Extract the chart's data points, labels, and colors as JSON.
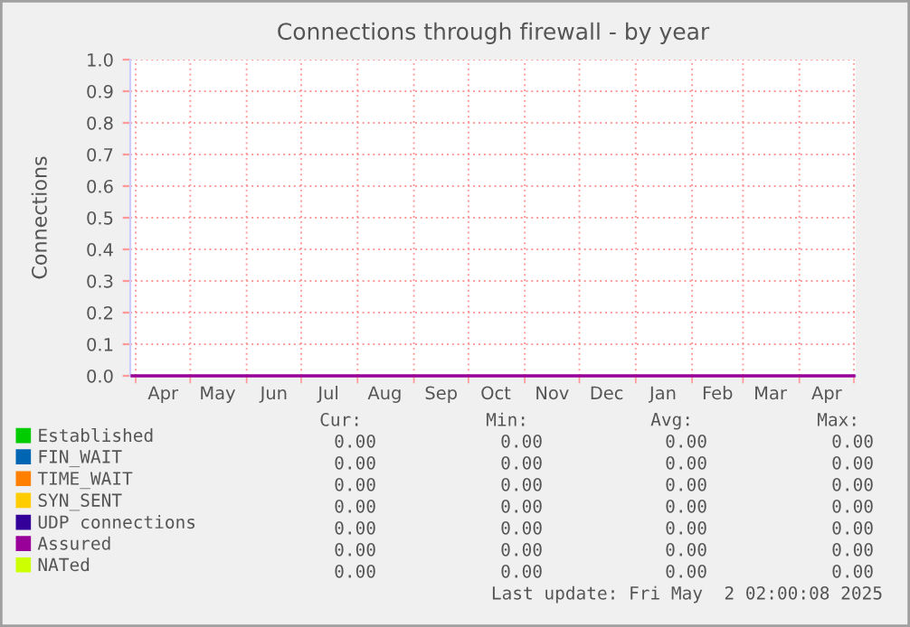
{
  "chart_data": {
    "type": "line",
    "title": "Connections through firewall - by year",
    "ylabel": "Connections",
    "x": [
      "2024-03-30",
      "2025-05-01"
    ],
    "series": [
      {
        "name": "Established",
        "color": "#00cc00",
        "values": [
          null,
          null
        ]
      },
      {
        "name": "FIN_WAIT",
        "color": "#0066b3",
        "values": [
          null,
          null
        ]
      },
      {
        "name": "TIME_WAIT",
        "color": "#ff8000",
        "values": [
          null,
          null
        ]
      },
      {
        "name": "SYN_SENT",
        "color": "#ffcc00",
        "values": [
          null,
          null
        ]
      },
      {
        "name": "UDP connections",
        "color": "#330099",
        "values": [
          null,
          null
        ]
      },
      {
        "name": "Assured",
        "color": "#990099",
        "values": [
          0,
          0
        ]
      },
      {
        "name": "NATed",
        "color": "#ccff00",
        "values": [
          null,
          null
        ]
      }
    ],
    "xlim": [
      "2024-03-29",
      "2025-05-02"
    ],
    "xticks": [
      {
        "value": "2024-04-01",
        "label": null
      },
      {
        "value": "2024-04-16",
        "label": "Apr"
      },
      {
        "value": "2024-05-01",
        "label": null
      },
      {
        "value": "2024-05-16",
        "label": "May"
      },
      {
        "value": "2024-06-01",
        "label": null
      },
      {
        "value": "2024-06-16",
        "label": "Jun"
      },
      {
        "value": "2024-07-01",
        "label": null
      },
      {
        "value": "2024-07-16",
        "label": "Jul"
      },
      {
        "value": "2024-08-01",
        "label": null
      },
      {
        "value": "2024-08-16",
        "label": "Aug"
      },
      {
        "value": "2024-09-01",
        "label": null
      },
      {
        "value": "2024-09-16",
        "label": "Sep"
      },
      {
        "value": "2024-10-01",
        "label": null
      },
      {
        "value": "2024-10-16",
        "label": "Oct"
      },
      {
        "value": "2024-11-01",
        "label": null
      },
      {
        "value": "2024-11-16",
        "label": "Nov"
      },
      {
        "value": "2024-12-01",
        "label": null
      },
      {
        "value": "2024-12-16",
        "label": "Dec"
      },
      {
        "value": "2025-01-01",
        "label": null
      },
      {
        "value": "2025-01-16",
        "label": "Jan"
      },
      {
        "value": "2025-02-01",
        "label": null
      },
      {
        "value": "2025-02-15",
        "label": "Feb"
      },
      {
        "value": "2025-03-01",
        "label": null
      },
      {
        "value": "2025-03-16",
        "label": "Mar"
      },
      {
        "value": "2025-04-01",
        "label": null
      },
      {
        "value": "2025-04-16",
        "label": "Apr"
      },
      {
        "value": "2025-05-01",
        "label": null
      }
    ],
    "ylim": [
      0,
      1
    ],
    "yticks": [
      {
        "value": 0,
        "label": "0.0"
      },
      {
        "value": 0.1,
        "label": "0.1"
      },
      {
        "value": 0.2,
        "label": "0.2"
      },
      {
        "value": 0.3,
        "label": "0.3"
      },
      {
        "value": 0.4,
        "label": "0.4"
      },
      {
        "value": 0.5,
        "label": "0.5"
      },
      {
        "value": 0.6,
        "label": "0.6"
      },
      {
        "value": 0.7,
        "label": "0.7"
      },
      {
        "value": 0.8,
        "label": "0.8"
      },
      {
        "value": 0.9,
        "label": "0.9"
      },
      {
        "value": 1,
        "label": "1.0"
      }
    ],
    "grid": true,
    "legend": "bottom",
    "marker": "none",
    "line_style": "solid",
    "annotations": [
      "Cur:",
      "Min:",
      "Avg:",
      "Max:",
      "0.00",
      "0.00",
      "0.00",
      "0.00",
      "0.00",
      "0.00",
      "0.00",
      "0.00",
      "0.00",
      "0.00",
      "0.00",
      "0.00",
      "0.00",
      "0.00",
      "0.00",
      "0.00",
      "0.00",
      "0.00",
      "0.00",
      "0.00",
      "0.00",
      "0.00",
      "0.00",
      "0.00",
      "0.00",
      "0.00",
      "0.00",
      "0.00",
      "Last update: Fri May  2 02:00:08 2025"
    ]
  }
}
